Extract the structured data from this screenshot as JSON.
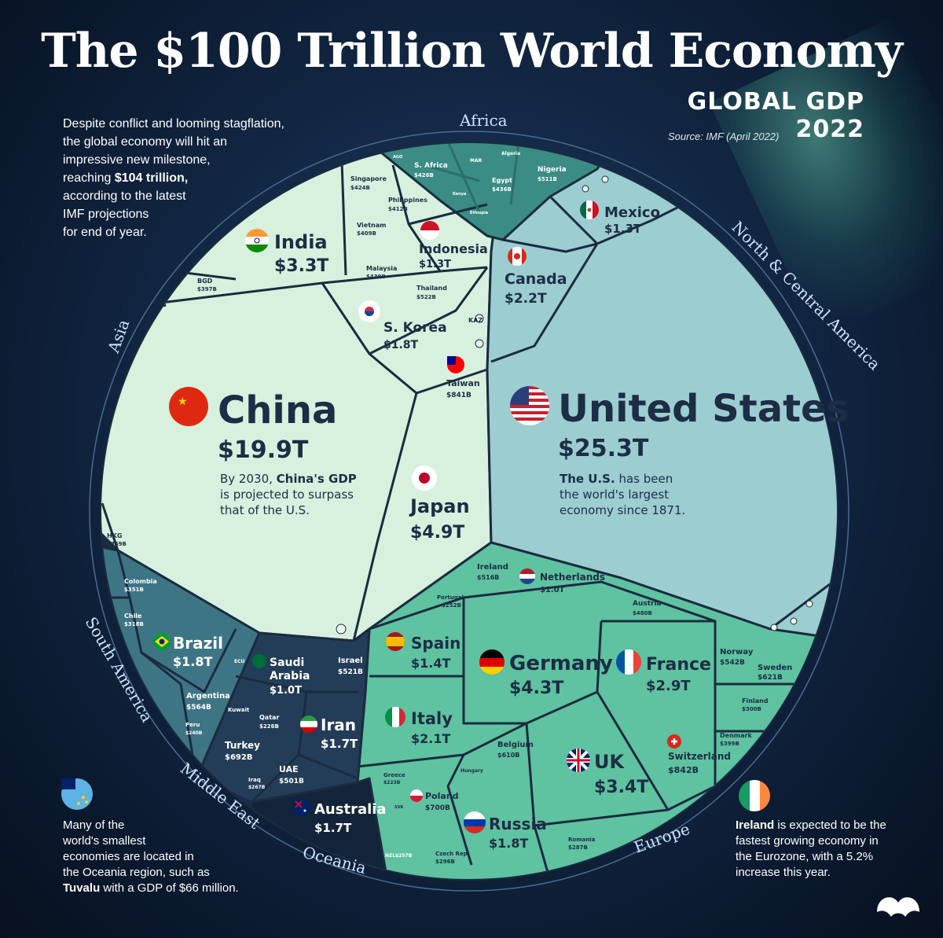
{
  "title": "The $100 Trillion World Economy",
  "subtitle": "GLOBAL GDP 2022",
  "source": "Source: IMF (April 2022)",
  "intro": {
    "line1": "Despite conflict and looming stagflation,",
    "line2": "the global economy will hit an",
    "line3": "impressive new milestone,",
    "line4_pre": "reaching ",
    "line4_bold": "$104 trillion,",
    "line5": "according to the latest",
    "line6": "IMF projections",
    "line7": "for end of year."
  },
  "regions": {
    "africa": "Africa",
    "north_america": "North & Central America",
    "asia": "Asia",
    "south_america": "South America",
    "middle_east": "Middle East",
    "oceania": "Oceania",
    "europe": "Europe"
  },
  "countries": {
    "us": {
      "name": "United States",
      "value": "$25.3T"
    },
    "china": {
      "name": "China",
      "value": "$19.9T"
    },
    "japan": {
      "name": "Japan",
      "value": "$4.9T"
    },
    "germany": {
      "name": "Germany",
      "value": "$4.3T"
    },
    "uk": {
      "name": "UK",
      "value": "$3.4T"
    },
    "india": {
      "name": "India",
      "value": "$3.3T"
    },
    "france": {
      "name": "France",
      "value": "$2.9T"
    },
    "canada": {
      "name": "Canada",
      "value": "$2.2T"
    },
    "italy": {
      "name": "Italy",
      "value": "$2.1T"
    },
    "brazil": {
      "name": "Brazil",
      "value": "$1.8T"
    },
    "skorea": {
      "name": "S. Korea",
      "value": "$1.8T"
    },
    "russia": {
      "name": "Russia",
      "value": "$1.8T"
    },
    "australia": {
      "name": "Australia",
      "value": "$1.7T"
    },
    "iran": {
      "name": "Iran",
      "value": "$1.7T"
    },
    "spain": {
      "name": "Spain",
      "value": "$1.4T"
    },
    "mexico": {
      "name": "Mexico",
      "value": "$1.3T"
    },
    "indonesia": {
      "name": "Indonesia",
      "value": "$1.3T"
    },
    "saudi": {
      "name1": "Saudi",
      "name2": "Arabia",
      "value": "$1.0T"
    },
    "netherlands": {
      "name": "Netherlands",
      "value": "$1.0T"
    },
    "switzerland": {
      "name": "Switzerland",
      "value": "$842B"
    },
    "taiwan": {
      "name": "Taiwan",
      "value": "$841B"
    },
    "poland": {
      "name": "Poland",
      "value": "$700B"
    },
    "turkey": {
      "name": "Turkey",
      "value": "$692B"
    },
    "sweden": {
      "name": "Sweden",
      "value": "$621B"
    },
    "belgium": {
      "name": "Belgium",
      "value": "$610B"
    },
    "argentina": {
      "name": "Argentina",
      "value": "$564B"
    },
    "norway": {
      "name": "Norway",
      "value": "$542B"
    },
    "israel": {
      "name": "Israel",
      "value": "$521B"
    },
    "ireland": {
      "name": "Ireland",
      "value": "$516B"
    },
    "nigeria": {
      "name": "Nigeria",
      "value": "$511B"
    },
    "uae": {
      "name": "UAE",
      "value": "$501B"
    },
    "austria": {
      "name": "Austria",
      "value": "$480B"
    },
    "egypt": {
      "name": "Egypt",
      "value": "$436B"
    },
    "safrica": {
      "name": "S. Africa",
      "value": "$426B"
    },
    "singapore": {
      "name": "Singapore",
      "value": "$424B"
    },
    "philippines": {
      "name": "Philippines",
      "value": "$412B"
    },
    "vietnam": {
      "name": "Vietnam",
      "value": "$409B"
    },
    "malaysia": {
      "name": "Malaysia",
      "value": "$439B"
    },
    "bgd": {
      "name": "BGD",
      "value": "$397B"
    },
    "denmark": {
      "name": "Denmark",
      "value": "$399B"
    },
    "hkg": {
      "name": "HKG",
      "value": "$369B"
    },
    "colombia": {
      "name": "Colombia",
      "value": "$351B"
    },
    "thailand": {
      "name": "Thailand",
      "value": "$522B"
    },
    "finland": {
      "name": "Finland",
      "value": "$300B"
    },
    "chile": {
      "name": "Chile",
      "value": "$318B"
    },
    "qatar": {
      "name": "Qatar",
      "value": "$226B"
    },
    "portugal": {
      "name": "Portugal",
      "value": "$252B"
    },
    "czech": {
      "name": "Czech Rep.",
      "value": "$296B"
    },
    "romania": {
      "name": "Romania",
      "value": "$287B"
    },
    "peru": {
      "name": "Peru",
      "value": "$240B"
    },
    "iraq": {
      "name": "Iraq",
      "value": "$267B"
    },
    "greece": {
      "name": "Greece",
      "value": "$223B"
    },
    "nzl": {
      "name": "NZL",
      "value": "$257B"
    },
    "kazakhstan": {
      "name": "KAZ"
    },
    "kuwait": {
      "name": "Kuwait"
    },
    "hungary": {
      "name": "Hungary"
    },
    "ecuador": {
      "name": "ECU"
    },
    "algeria": {
      "name": "Algeria"
    },
    "morocco": {
      "name": "MAR"
    },
    "kenya": {
      "name": "Kenya"
    },
    "ethiopia": {
      "name": "Ethiopia"
    },
    "angola": {
      "name": "AGO"
    },
    "svk": {
      "name": "SVK"
    }
  },
  "notes": {
    "china": {
      "l1_pre": "By 2030, ",
      "l1_bold": "China's GDP",
      "l2": "is projected to surpass",
      "l3": "that of the U.S."
    },
    "us": {
      "l1_bold": "The U.S.",
      "l1_post": " has been",
      "l2": "the world's largest",
      "l3": "economy since 1871."
    },
    "oceania": {
      "l1": "Many of the",
      "l2": "world's smallest",
      "l3": "economies are located in",
      "l4": "the Oceania region, such as",
      "l5_bold": "Tuvalu",
      "l5_post": " with a GDP of $66 million."
    },
    "ireland": {
      "l1_bold": "Ireland",
      "l1_post": " is expected to be the",
      "l2": "fastest growing economy in",
      "l3": "the Eurozone, with a 5.2%",
      "l4": "increase this year."
    }
  },
  "colors": {
    "asia": "#d7f1de",
    "north_america": "#9ccdd1",
    "europe": "#5fc2a0",
    "south_america": "#3e7584",
    "middle_east": "#233d58",
    "oceania": "#13243a",
    "africa": "#3a8c85",
    "border": "#1b2b40"
  }
}
